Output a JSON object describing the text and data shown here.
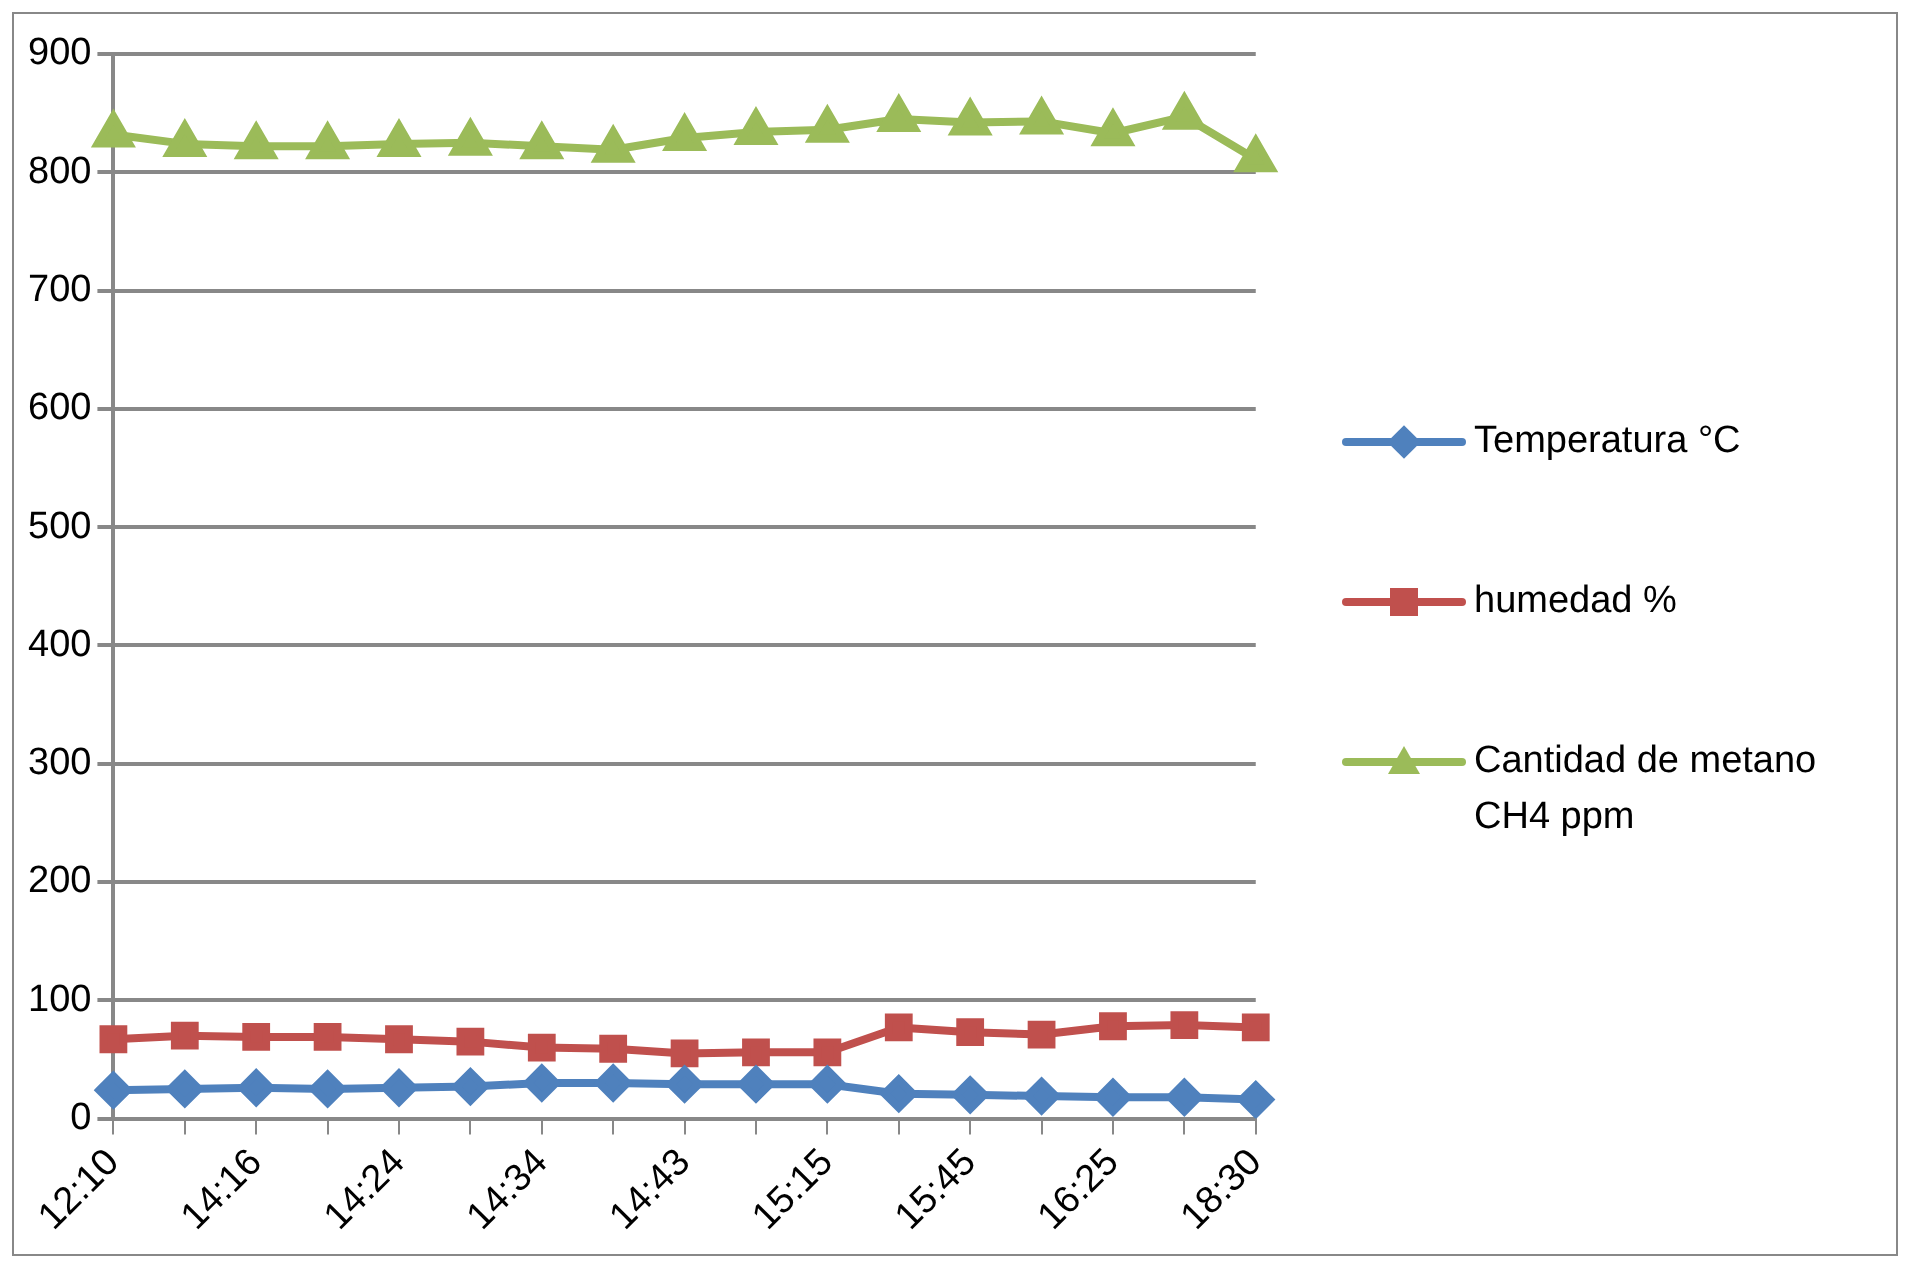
{
  "chart_data": {
    "type": "line",
    "categories": [
      "12:10",
      null,
      "14:16",
      null,
      "14:24",
      null,
      "14:34",
      null,
      "14:43",
      null,
      "15:15",
      null,
      "15:45",
      null,
      "16:25",
      null,
      "18:30"
    ],
    "series": [
      {
        "name": "Temperatura °C",
        "color": "#4f81bd",
        "marker": "diamond",
        "values": [
          24,
          25,
          26,
          25,
          26,
          27,
          30,
          30,
          29,
          29,
          29,
          21,
          20,
          19,
          18,
          18,
          16
        ]
      },
      {
        "name": "humedad %",
        "color": "#c0504d",
        "marker": "square",
        "values": [
          67,
          70,
          69,
          69,
          67,
          65,
          60,
          59,
          55,
          56,
          56,
          77,
          73,
          71,
          78,
          79,
          77
        ]
      },
      {
        "name": "Cantidad de metano CH4 ppm",
        "color": "#9bbb59",
        "marker": "triangle",
        "values": [
          832,
          824,
          822,
          822,
          824,
          825,
          822,
          819,
          829,
          834,
          836,
          845,
          842,
          843,
          833,
          847,
          811
        ]
      }
    ],
    "ylim": [
      0,
      900
    ],
    "yticks": [
      0,
      100,
      200,
      300,
      400,
      500,
      600,
      700,
      800,
      900
    ],
    "grid": "y",
    "legend": "right"
  }
}
